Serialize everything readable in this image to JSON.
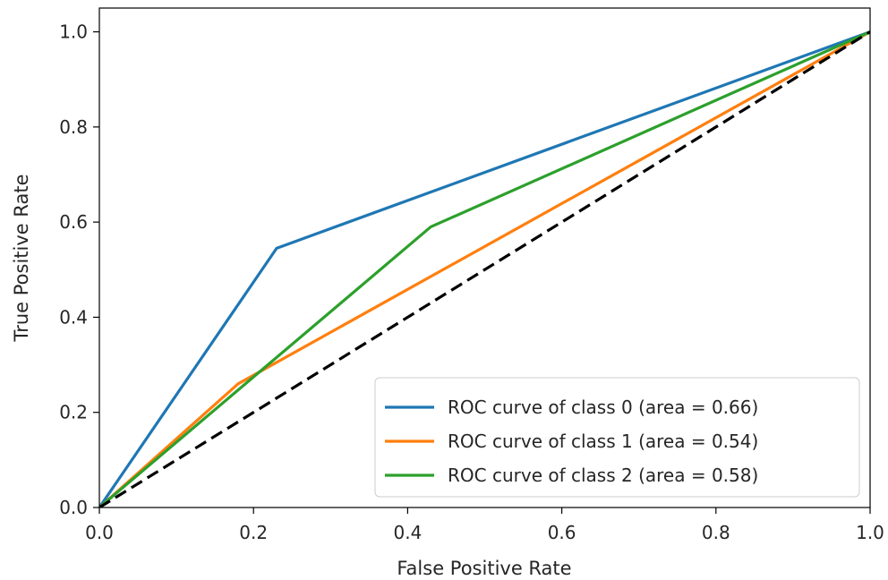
{
  "chart_data": {
    "type": "line",
    "title": "",
    "xlabel": "False Positive Rate",
    "ylabel": "True Positive Rate",
    "xlim": [
      0.0,
      1.0
    ],
    "ylim": [
      0.0,
      1.05
    ],
    "xticks": [
      0.0,
      0.2,
      0.4,
      0.6,
      0.8,
      1.0
    ],
    "yticks": [
      0.0,
      0.2,
      0.4,
      0.6,
      0.8,
      1.0
    ],
    "xtick_labels": [
      "0.0",
      "0.2",
      "0.4",
      "0.6",
      "0.8",
      "1.0"
    ],
    "ytick_labels": [
      "0.0",
      "0.2",
      "0.4",
      "0.6",
      "0.8",
      "1.0"
    ],
    "grid": false,
    "legend_position": "lower-right",
    "series": [
      {
        "name": "ROC curve of class 0 (area = 0.66)",
        "color": "#1f77b4",
        "x": [
          0.0,
          0.23,
          1.0
        ],
        "y": [
          0.0,
          0.545,
          1.0
        ]
      },
      {
        "name": "ROC curve of class 1 (area = 0.54)",
        "color": "#ff7f0e",
        "x": [
          0.0,
          0.18,
          1.0
        ],
        "y": [
          0.0,
          0.26,
          1.0
        ]
      },
      {
        "name": "ROC curve of class 2 (area = 0.58)",
        "color": "#2ca02c",
        "x": [
          0.0,
          0.43,
          1.0
        ],
        "y": [
          0.0,
          0.59,
          1.0
        ]
      }
    ],
    "reference_line": {
      "x": [
        0.0,
        1.0
      ],
      "y": [
        0.0,
        1.0
      ],
      "color": "#000000",
      "style": "dashed"
    }
  }
}
